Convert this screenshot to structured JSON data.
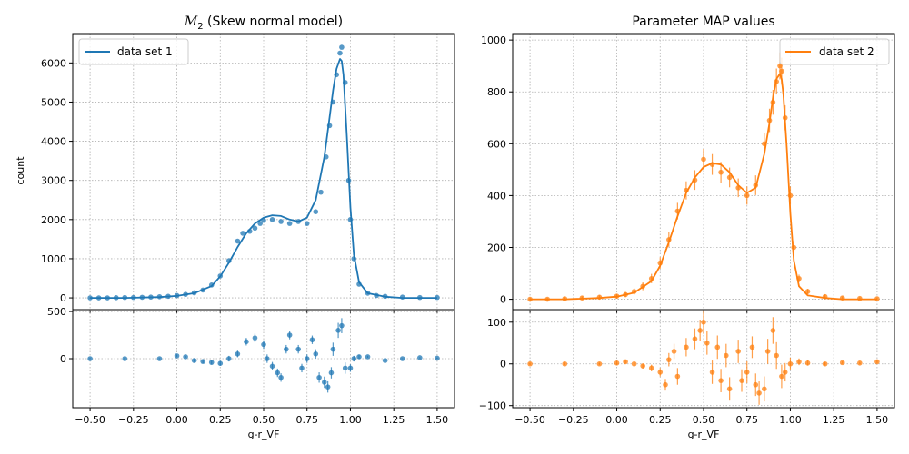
{
  "colors": {
    "series1": "#1f77b4",
    "series2": "#ff7f0e",
    "grid": "#b0b0b0",
    "axis": "#000000"
  },
  "chart_data": [
    {
      "panel": "left-main",
      "type": "scatter",
      "title_math": "M",
      "title_sub": "2",
      "title_rest": " (Skew normal model)",
      "xlabel": "",
      "ylabel": "count",
      "xlim": [
        -0.6,
        1.6
      ],
      "ylim": [
        -300,
        6750
      ],
      "xticks": [
        -0.5,
        -0.25,
        0.0,
        0.25,
        0.5,
        0.75,
        1.0,
        1.25,
        1.5
      ],
      "yticks": [
        0,
        1000,
        2000,
        3000,
        4000,
        5000,
        6000
      ],
      "ytick_labels": [
        "0",
        "1000",
        "2000",
        "3000",
        "4000",
        "5000",
        "6000"
      ],
      "grid": true,
      "legend": {
        "placement": "top-left",
        "label": "data set 1"
      },
      "model_curve": {
        "x": [
          -0.5,
          -0.3,
          -0.1,
          0.0,
          0.1,
          0.2,
          0.25,
          0.3,
          0.35,
          0.4,
          0.45,
          0.5,
          0.55,
          0.6,
          0.65,
          0.7,
          0.75,
          0.8,
          0.85,
          0.88,
          0.9,
          0.92,
          0.94,
          0.95,
          0.96,
          0.98,
          1.0,
          1.02,
          1.05,
          1.1,
          1.2,
          1.3,
          1.5
        ],
        "y": [
          0,
          0,
          20,
          50,
          120,
          300,
          550,
          900,
          1300,
          1650,
          1900,
          2050,
          2110,
          2090,
          2000,
          1950,
          2050,
          2500,
          3600,
          4600,
          5300,
          5850,
          6100,
          6050,
          5700,
          4100,
          2300,
          1100,
          400,
          120,
          30,
          0,
          0
        ]
      },
      "points": {
        "x": [
          -0.5,
          -0.45,
          -0.4,
          -0.35,
          -0.3,
          -0.25,
          -0.2,
          -0.15,
          -0.1,
          -0.05,
          0.0,
          0.05,
          0.1,
          0.15,
          0.2,
          0.25,
          0.3,
          0.35,
          0.38,
          0.42,
          0.45,
          0.48,
          0.5,
          0.55,
          0.6,
          0.65,
          0.7,
          0.75,
          0.8,
          0.83,
          0.86,
          0.88,
          0.9,
          0.92,
          0.94,
          0.95,
          0.97,
          0.99,
          1.0,
          1.02,
          1.05,
          1.1,
          1.15,
          1.2,
          1.3,
          1.4,
          1.5
        ],
        "y": [
          0,
          0,
          0,
          5,
          10,
          10,
          15,
          20,
          30,
          40,
          60,
          90,
          130,
          200,
          330,
          560,
          950,
          1450,
          1650,
          1700,
          1780,
          1900,
          1980,
          2000,
          1950,
          1900,
          1950,
          1900,
          2200,
          2700,
          3600,
          4400,
          5000,
          5700,
          6250,
          6400,
          5500,
          3000,
          2000,
          1000,
          350,
          120,
          60,
          40,
          20,
          10,
          10
        ]
      }
    },
    {
      "panel": "left-residual",
      "type": "scatter",
      "xlabel": "g-r_VF",
      "ylabel": "",
      "xlim": [
        -0.6,
        1.6
      ],
      "ylim": [
        -520,
        520
      ],
      "xticks": [
        -0.5,
        -0.25,
        0.0,
        0.25,
        0.5,
        0.75,
        1.0,
        1.25,
        1.5
      ],
      "xtick_labels": [
        "−0.50",
        "−0.25",
        "0.00",
        "0.25",
        "0.50",
        "0.75",
        "1.00",
        "1.25",
        "1.50"
      ],
      "yticks": [
        0,
        500
      ],
      "ytick_labels": [
        "0",
        "500"
      ],
      "grid": true,
      "points": {
        "x": [
          -0.5,
          -0.3,
          -0.1,
          0.0,
          0.05,
          0.1,
          0.15,
          0.2,
          0.25,
          0.3,
          0.35,
          0.4,
          0.45,
          0.5,
          0.52,
          0.55,
          0.58,
          0.6,
          0.63,
          0.65,
          0.7,
          0.72,
          0.75,
          0.78,
          0.8,
          0.82,
          0.85,
          0.87,
          0.89,
          0.9,
          0.93,
          0.95,
          0.97,
          1.0,
          1.02,
          1.05,
          1.1,
          1.2,
          1.3,
          1.4,
          1.5
        ],
        "y": [
          0,
          0,
          0,
          30,
          20,
          -20,
          -30,
          -40,
          -50,
          0,
          50,
          180,
          220,
          150,
          0,
          -80,
          -150,
          -200,
          100,
          250,
          100,
          -100,
          0,
          200,
          50,
          -200,
          -250,
          -300,
          -150,
          100,
          300,
          350,
          -100,
          -100,
          0,
          20,
          20,
          -20,
          0,
          10,
          5
        ],
        "err": [
          5,
          5,
          5,
          10,
          10,
          15,
          20,
          20,
          25,
          30,
          35,
          40,
          45,
          45,
          45,
          45,
          45,
          45,
          45,
          45,
          45,
          45,
          45,
          45,
          50,
          55,
          60,
          60,
          60,
          70,
          80,
          80,
          60,
          40,
          30,
          20,
          10,
          8,
          5,
          5,
          5
        ]
      }
    },
    {
      "panel": "right-main",
      "type": "scatter",
      "title": "Parameter MAP values",
      "xlabel": "",
      "ylabel": "",
      "xlim": [
        -0.6,
        1.6
      ],
      "ylim": [
        -40,
        1025
      ],
      "xticks": [
        -0.5,
        -0.25,
        0.0,
        0.25,
        0.5,
        0.75,
        1.0,
        1.25,
        1.5
      ],
      "yticks": [
        0,
        200,
        400,
        600,
        800,
        1000
      ],
      "ytick_labels": [
        "0",
        "200",
        "400",
        "600",
        "800",
        "1000"
      ],
      "grid": true,
      "legend": {
        "placement": "top-right",
        "label": "data set 2"
      },
      "model_curve": {
        "x": [
          -0.5,
          -0.3,
          -0.1,
          0.0,
          0.1,
          0.2,
          0.25,
          0.3,
          0.35,
          0.4,
          0.45,
          0.5,
          0.55,
          0.6,
          0.65,
          0.7,
          0.75,
          0.8,
          0.85,
          0.88,
          0.9,
          0.92,
          0.94,
          0.95,
          0.96,
          0.98,
          1.0,
          1.02,
          1.05,
          1.1,
          1.2,
          1.3,
          1.5
        ],
        "y": [
          0,
          0,
          5,
          10,
          25,
          70,
          130,
          220,
          320,
          410,
          470,
          510,
          525,
          520,
          490,
          440,
          410,
          430,
          560,
          680,
          780,
          850,
          870,
          850,
          790,
          580,
          330,
          150,
          50,
          15,
          5,
          0,
          0
        ]
      },
      "points": {
        "x": [
          -0.5,
          -0.4,
          -0.3,
          -0.2,
          -0.1,
          0.0,
          0.05,
          0.1,
          0.15,
          0.2,
          0.25,
          0.3,
          0.35,
          0.4,
          0.45,
          0.5,
          0.55,
          0.6,
          0.65,
          0.7,
          0.75,
          0.8,
          0.85,
          0.88,
          0.9,
          0.92,
          0.94,
          0.95,
          0.97,
          1.0,
          1.02,
          1.05,
          1.1,
          1.2,
          1.3,
          1.4,
          1.5
        ],
        "y": [
          0,
          0,
          2,
          5,
          8,
          12,
          18,
          30,
          50,
          80,
          140,
          230,
          340,
          420,
          460,
          540,
          520,
          490,
          470,
          430,
          400,
          440,
          600,
          690,
          760,
          840,
          900,
          880,
          700,
          400,
          200,
          80,
          30,
          10,
          5,
          3,
          2
        ],
        "err": [
          5,
          5,
          6,
          6,
          7,
          8,
          10,
          12,
          15,
          18,
          22,
          28,
          32,
          35,
          38,
          40,
          40,
          40,
          38,
          36,
          35,
          38,
          42,
          45,
          48,
          50,
          52,
          52,
          48,
          35,
          25,
          15,
          10,
          8,
          6,
          5,
          5
        ]
      }
    },
    {
      "panel": "right-residual",
      "type": "scatter",
      "xlabel": "g-r_VF",
      "ylabel": "",
      "xlim": [
        -0.6,
        1.6
      ],
      "ylim": [
        -105,
        130
      ],
      "xticks": [
        -0.5,
        -0.25,
        0.0,
        0.25,
        0.5,
        0.75,
        1.0,
        1.25,
        1.5
      ],
      "xtick_labels": [
        "−0.50",
        "−0.25",
        "0.00",
        "0.25",
        "0.50",
        "0.75",
        "1.00",
        "1.25",
        "1.50"
      ],
      "yticks": [
        -100,
        0,
        100
      ],
      "ytick_labels": [
        "−100",
        "0",
        "100"
      ],
      "grid": true,
      "points": {
        "x": [
          -0.5,
          -0.3,
          -0.1,
          0.0,
          0.05,
          0.1,
          0.15,
          0.2,
          0.25,
          0.28,
          0.3,
          0.33,
          0.35,
          0.4,
          0.45,
          0.48,
          0.5,
          0.52,
          0.55,
          0.58,
          0.6,
          0.63,
          0.65,
          0.7,
          0.72,
          0.75,
          0.78,
          0.8,
          0.82,
          0.85,
          0.87,
          0.9,
          0.92,
          0.95,
          0.97,
          1.0,
          1.05,
          1.1,
          1.2,
          1.3,
          1.4,
          1.5
        ],
        "y": [
          0,
          0,
          0,
          2,
          5,
          0,
          -5,
          -10,
          -20,
          -50,
          10,
          30,
          -30,
          40,
          60,
          80,
          100,
          50,
          -20,
          40,
          -40,
          20,
          -60,
          30,
          -40,
          -20,
          40,
          -50,
          -70,
          -60,
          30,
          80,
          20,
          -30,
          -20,
          0,
          5,
          2,
          0,
          3,
          2,
          5
        ],
        "err": [
          3,
          3,
          3,
          4,
          4,
          5,
          6,
          8,
          10,
          14,
          16,
          18,
          20,
          22,
          25,
          26,
          28,
          28,
          28,
          28,
          28,
          28,
          28,
          28,
          27,
          26,
          26,
          27,
          28,
          30,
          30,
          32,
          32,
          28,
          22,
          15,
          8,
          6,
          4,
          3,
          3,
          3
        ]
      }
    }
  ]
}
